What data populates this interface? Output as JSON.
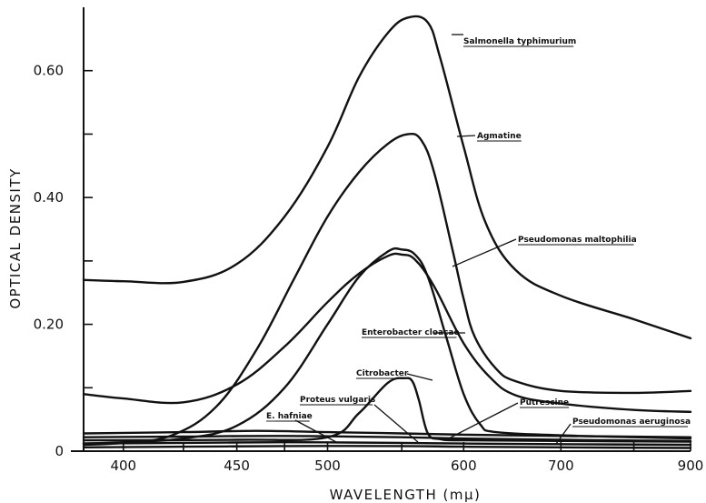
{
  "chart_data": {
    "type": "line",
    "title": "",
    "xlabel": "WAVELENGTH (mµ)",
    "ylabel": "OPTICAL DENSITY",
    "x_scale": "reciprocal",
    "xlim": [
      385,
      900
    ],
    "ylim": [
      0,
      0.7
    ],
    "x_ticks": [
      {
        "value": 400,
        "label": "400"
      },
      {
        "value": 425,
        "label": ""
      },
      {
        "value": 450,
        "label": "450"
      },
      {
        "value": 475,
        "label": ""
      },
      {
        "value": 500,
        "label": "500"
      },
      {
        "value": 550,
        "label": ""
      },
      {
        "value": 600,
        "label": "600"
      },
      {
        "value": 700,
        "label": "700"
      },
      {
        "value": 800,
        "label": ""
      },
      {
        "value": 900,
        "label": "900"
      }
    ],
    "y_ticks": [
      {
        "value": 0,
        "label": "0"
      },
      {
        "value": 0.1,
        "label": ""
      },
      {
        "value": 0.2,
        "label": "0.20"
      },
      {
        "value": 0.3,
        "label": ""
      },
      {
        "value": 0.4,
        "label": "0.40"
      },
      {
        "value": 0.5,
        "label": ""
      },
      {
        "value": 0.6,
        "label": "0.60"
      }
    ],
    "grid": false,
    "legend": "none",
    "series": [
      {
        "name": "Salmonella typhimurium",
        "points": [
          [
            385,
            0.27
          ],
          [
            400,
            0.268
          ],
          [
            425,
            0.267
          ],
          [
            450,
            0.295
          ],
          [
            475,
            0.37
          ],
          [
            500,
            0.48
          ],
          [
            520,
            0.59
          ],
          [
            540,
            0.66
          ],
          [
            555,
            0.684
          ],
          [
            570,
            0.676
          ],
          [
            580,
            0.62
          ],
          [
            600,
            0.48
          ],
          [
            620,
            0.36
          ],
          [
            650,
            0.285
          ],
          [
            700,
            0.245
          ],
          [
            800,
            0.208
          ],
          [
            900,
            0.178
          ]
        ]
      },
      {
        "name": "Agmatine",
        "points": [
          [
            385,
            0.01
          ],
          [
            400,
            0.013
          ],
          [
            420,
            0.025
          ],
          [
            440,
            0.07
          ],
          [
            460,
            0.16
          ],
          [
            480,
            0.27
          ],
          [
            500,
            0.37
          ],
          [
            520,
            0.44
          ],
          [
            540,
            0.485
          ],
          [
            555,
            0.5
          ],
          [
            565,
            0.49
          ],
          [
            575,
            0.44
          ],
          [
            590,
            0.32
          ],
          [
            600,
            0.24
          ],
          [
            610,
            0.18
          ],
          [
            630,
            0.13
          ],
          [
            650,
            0.11
          ],
          [
            700,
            0.095
          ],
          [
            800,
            0.092
          ],
          [
            900,
            0.095
          ]
        ]
      },
      {
        "name": "Pseudomonas maltophilia",
        "points": [
          [
            385,
            0.09
          ],
          [
            400,
            0.083
          ],
          [
            425,
            0.077
          ],
          [
            450,
            0.105
          ],
          [
            475,
            0.165
          ],
          [
            500,
            0.235
          ],
          [
            520,
            0.28
          ],
          [
            540,
            0.308
          ],
          [
            550,
            0.31
          ],
          [
            560,
            0.302
          ],
          [
            575,
            0.26
          ],
          [
            600,
            0.17
          ],
          [
            625,
            0.115
          ],
          [
            650,
            0.088
          ],
          [
            700,
            0.075
          ],
          [
            800,
            0.065
          ],
          [
            900,
            0.062
          ]
        ]
      },
      {
        "name": "Enterobacter cloacae",
        "points": [
          [
            385,
            0.012
          ],
          [
            400,
            0.014
          ],
          [
            425,
            0.02
          ],
          [
            450,
            0.04
          ],
          [
            475,
            0.1
          ],
          [
            500,
            0.2
          ],
          [
            520,
            0.275
          ],
          [
            540,
            0.315
          ],
          [
            550,
            0.318
          ],
          [
            560,
            0.31
          ],
          [
            570,
            0.275
          ],
          [
            585,
            0.18
          ],
          [
            600,
            0.09
          ],
          [
            615,
            0.042
          ],
          [
            630,
            0.03
          ],
          [
            700,
            0.025
          ],
          [
            800,
            0.022
          ],
          [
            900,
            0.02
          ]
        ]
      },
      {
        "name": "Citrobacter",
        "points": [
          [
            385,
            0.017
          ],
          [
            450,
            0.018
          ],
          [
            500,
            0.022
          ],
          [
            520,
            0.06
          ],
          [
            540,
            0.108
          ],
          [
            552,
            0.115
          ],
          [
            558,
            0.11
          ],
          [
            563,
            0.08
          ],
          [
            570,
            0.028
          ],
          [
            580,
            0.019
          ],
          [
            600,
            0.017
          ],
          [
            700,
            0.016
          ],
          [
            900,
            0.015
          ]
        ]
      },
      {
        "name": "Proteus vulgaris",
        "points": [
          [
            385,
            0.028
          ],
          [
            425,
            0.03
          ],
          [
            460,
            0.032
          ],
          [
            500,
            0.03
          ],
          [
            550,
            0.028
          ],
          [
            600,
            0.026
          ],
          [
            700,
            0.024
          ],
          [
            900,
            0.022
          ]
        ]
      },
      {
        "name": "E. hafniae",
        "points": [
          [
            385,
            0.022
          ],
          [
            425,
            0.023
          ],
          [
            475,
            0.024
          ],
          [
            550,
            0.022
          ],
          [
            600,
            0.02
          ],
          [
            700,
            0.018
          ],
          [
            900,
            0.016
          ]
        ]
      },
      {
        "name": "Putrescine",
        "points": [
          [
            385,
            0.012
          ],
          [
            425,
            0.013
          ],
          [
            475,
            0.014
          ],
          [
            550,
            0.013
          ],
          [
            600,
            0.012
          ],
          [
            700,
            0.011
          ],
          [
            900,
            0.01
          ]
        ]
      },
      {
        "name": "Pseudomonas aeruginosa",
        "points": [
          [
            385,
            0.006
          ],
          [
            425,
            0.007
          ],
          [
            475,
            0.008
          ],
          [
            550,
            0.008
          ],
          [
            600,
            0.007
          ],
          [
            700,
            0.006
          ],
          [
            900,
            0.005
          ]
        ]
      }
    ],
    "annotations": [
      {
        "series": "Salmonella typhimurium",
        "text_parts": [
          "Salmonella",
          "typhimurium"
        ]
      },
      {
        "series": "Agmatine",
        "text_parts": [
          "Agmatine"
        ]
      },
      {
        "series": "Pseudomonas maltophilia",
        "text_parts": [
          "Pseudomonas",
          "maltophilia"
        ]
      },
      {
        "series": "Enterobacter cloacae",
        "text_parts": [
          "Enterobacter",
          "cloacae"
        ]
      },
      {
        "series": "Citrobacter",
        "text_parts": [
          "Citrobacter"
        ]
      },
      {
        "series": "Proteus vulgaris",
        "text_parts": [
          "Proteus",
          "vulgaris"
        ]
      },
      {
        "series": "E. hafniae",
        "text_parts": [
          "E.",
          "hafniae"
        ]
      },
      {
        "series": "Putrescine",
        "text_parts": [
          "Putrescine"
        ]
      },
      {
        "series": "Pseudomonas aeruginosa",
        "text_parts": [
          "Pseudomonas",
          "aeruginosa"
        ]
      }
    ]
  }
}
